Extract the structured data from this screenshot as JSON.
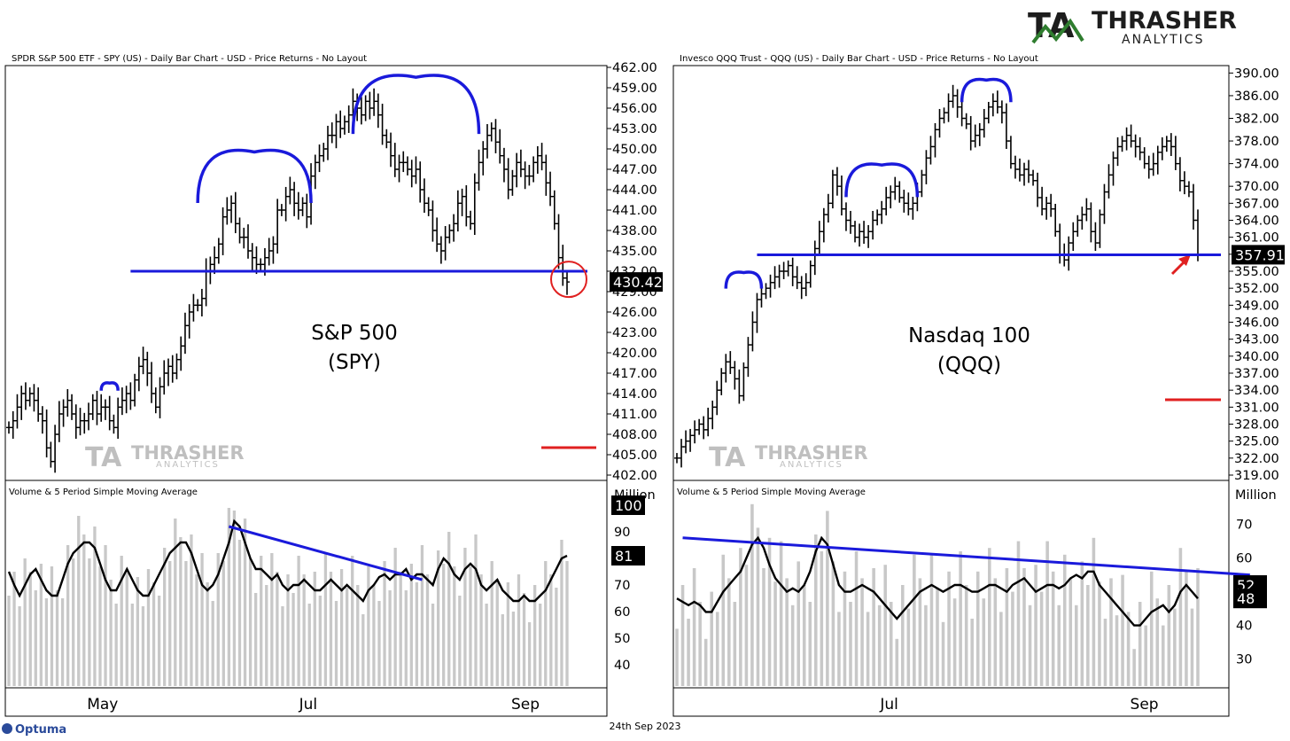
{
  "logo": {
    "mark": "TA",
    "name": "THRASHER",
    "sub": "ANALYTICS"
  },
  "footer": {
    "app": "Optuma",
    "date": "24th Sep 2023"
  },
  "colors": {
    "pattern": "#1a1adb",
    "alert": "#e02020",
    "volume": "#c8c8c8",
    "logo_green": "#2f7d2f"
  },
  "chart_data": [
    {
      "type": "bar",
      "title": "SPDR S&P 500 ETF - SPY (US) - Daily Bar Chart - USD - Price Returns - No Layout",
      "label_line1": "S&P 500",
      "label_line2": "(SPY)",
      "last_price": "430.42",
      "ylim": [
        402,
        462
      ],
      "yticks": [
        "462.00",
        "459.00",
        "456.00",
        "453.00",
        "450.00",
        "447.00",
        "444.00",
        "441.00",
        "438.00",
        "435.00",
        "432.00",
        "429.00",
        "426.00",
        "423.00",
        "420.00",
        "417.00",
        "414.00",
        "411.00",
        "408.00",
        "405.00",
        "402.00"
      ],
      "xticks": [
        "May",
        "Jul",
        "Sep"
      ],
      "neckline": 432.0,
      "closes": [
        409,
        410,
        412,
        414,
        413,
        414,
        413,
        411,
        410,
        406,
        404,
        408,
        411,
        412,
        413,
        411,
        409,
        410,
        410,
        411,
        413,
        411,
        412,
        412,
        410,
        409,
        412,
        413,
        414,
        413,
        416,
        418,
        419,
        417,
        414,
        412,
        415,
        417,
        418,
        417,
        419,
        421,
        424,
        426,
        427,
        427,
        428,
        432,
        433,
        434,
        436,
        440,
        441,
        442,
        439,
        437,
        437,
        435,
        434,
        433,
        433,
        434,
        435,
        436,
        441,
        441,
        443,
        444,
        442,
        441,
        442,
        440,
        446,
        448,
        449,
        450,
        452,
        452,
        454,
        453,
        454,
        455,
        457,
        456,
        455,
        457,
        456,
        457,
        455,
        452,
        451,
        449,
        447,
        448,
        448,
        447,
        446,
        447,
        444,
        442,
        441,
        438,
        436,
        435,
        437,
        438,
        439,
        442,
        443,
        440,
        439,
        445,
        448,
        450,
        452,
        453,
        451,
        449,
        447,
        444,
        446,
        448,
        447,
        446,
        446,
        448,
        449,
        448,
        445,
        443,
        439,
        434,
        431,
        430.42
      ],
      "volume": {
        "title": "Volume & 5 Period Simple Moving Average",
        "unit": "Million",
        "ylim": [
          32,
          108
        ],
        "yticks": [
          "100",
          "90",
          "80",
          "70",
          "60",
          "50",
          "40"
        ],
        "last_value": "100",
        "last_ma": "81",
        "ma": [
          75,
          70,
          66,
          70,
          74,
          76,
          72,
          68,
          66,
          66,
          72,
          78,
          82,
          84,
          86,
          86,
          84,
          78,
          72,
          68,
          68,
          72,
          76,
          72,
          68,
          66,
          66,
          70,
          74,
          78,
          82,
          84,
          86,
          86,
          82,
          76,
          70,
          68,
          70,
          74,
          80,
          86,
          94,
          92,
          86,
          80,
          76,
          76,
          74,
          72,
          74,
          70,
          68,
          70,
          70,
          72,
          70,
          68,
          68,
          70,
          72,
          70,
          68,
          70,
          68,
          66,
          64,
          68,
          70,
          73,
          74,
          72,
          74,
          74,
          76,
          72,
          74,
          74,
          72,
          70,
          76,
          80,
          78,
          74,
          72,
          76,
          78,
          76,
          70,
          68,
          70,
          72,
          68,
          66,
          64,
          64,
          66,
          64,
          64,
          66,
          68,
          72,
          76,
          80,
          81
        ],
        "trend_line": [
          [
            41,
            92
          ],
          [
            77,
            72
          ]
        ]
      }
    },
    {
      "type": "bar",
      "title": "Invesco QQQ Trust - QQQ (US) - Daily Bar Chart - USD - Price Returns - No Layout",
      "label_line1": "Nasdaq 100",
      "label_line2": "(QQQ)",
      "last_price": "357.91",
      "ylim": [
        319,
        391
      ],
      "yticks": [
        "390.00",
        "386.00",
        "382.00",
        "378.00",
        "374.00",
        "370.00",
        "367.00",
        "364.00",
        "361.00",
        "358.00",
        "355.00",
        "352.00",
        "349.00",
        "346.00",
        "343.00",
        "340.00",
        "337.00",
        "334.00",
        "331.00",
        "328.00",
        "325.00",
        "322.00",
        "319.00"
      ],
      "xticks": [
        "Jul",
        "Sep"
      ],
      "neckline": 357.9,
      "closes": [
        322,
        324,
        325,
        326,
        327,
        328,
        327,
        329,
        331,
        334,
        337,
        339,
        338,
        336,
        333,
        338,
        342,
        346,
        350,
        351,
        352,
        353,
        354,
        355,
        355,
        356,
        354,
        353,
        352,
        353,
        356,
        359,
        362,
        365,
        367,
        372,
        370,
        366,
        364,
        363,
        361,
        362,
        361,
        362,
        364,
        365,
        366,
        368,
        369,
        370,
        368,
        367,
        366,
        367,
        369,
        372,
        375,
        377,
        380,
        382,
        383,
        385,
        386,
        384,
        382,
        381,
        378,
        379,
        380,
        382,
        384,
        385,
        384,
        383,
        378,
        374,
        373,
        372,
        373,
        372,
        371,
        368,
        366,
        367,
        366,
        362,
        358,
        357,
        360,
        362,
        364,
        365,
        366,
        362,
        360,
        365,
        369,
        372,
        375,
        377,
        378,
        379,
        378,
        377,
        376,
        374,
        373,
        374,
        376,
        377,
        378,
        377,
        374,
        371,
        370,
        369,
        364,
        357.91
      ],
      "volume": {
        "title": "Volume & 5 Period Simple Moving Average",
        "unit": "Million",
        "ylim": [
          22,
          82
        ],
        "yticks": [
          "70",
          "60",
          "50",
          "40",
          "30"
        ],
        "last_value": "52",
        "last_ma": "48",
        "ma": [
          48,
          47,
          46,
          47,
          46,
          44,
          44,
          47,
          50,
          52,
          54,
          56,
          60,
          64,
          66,
          63,
          58,
          54,
          52,
          50,
          51,
          50,
          52,
          56,
          62,
          66,
          64,
          58,
          52,
          50,
          50,
          51,
          52,
          51,
          50,
          48,
          46,
          44,
          42,
          44,
          46,
          48,
          50,
          51,
          52,
          51,
          50,
          51,
          52,
          52,
          51,
          50,
          50,
          51,
          52,
          52,
          51,
          50,
          52,
          53,
          54,
          52,
          50,
          51,
          52,
          52,
          51,
          52,
          54,
          55,
          54,
          56,
          56,
          52,
          50,
          48,
          46,
          44,
          42,
          40,
          40,
          42,
          44,
          45,
          46,
          44,
          46,
          50,
          52,
          50,
          48
        ],
        "trend_line": [
          [
            1,
            66
          ],
          [
            99,
            55
          ]
        ]
      }
    }
  ]
}
